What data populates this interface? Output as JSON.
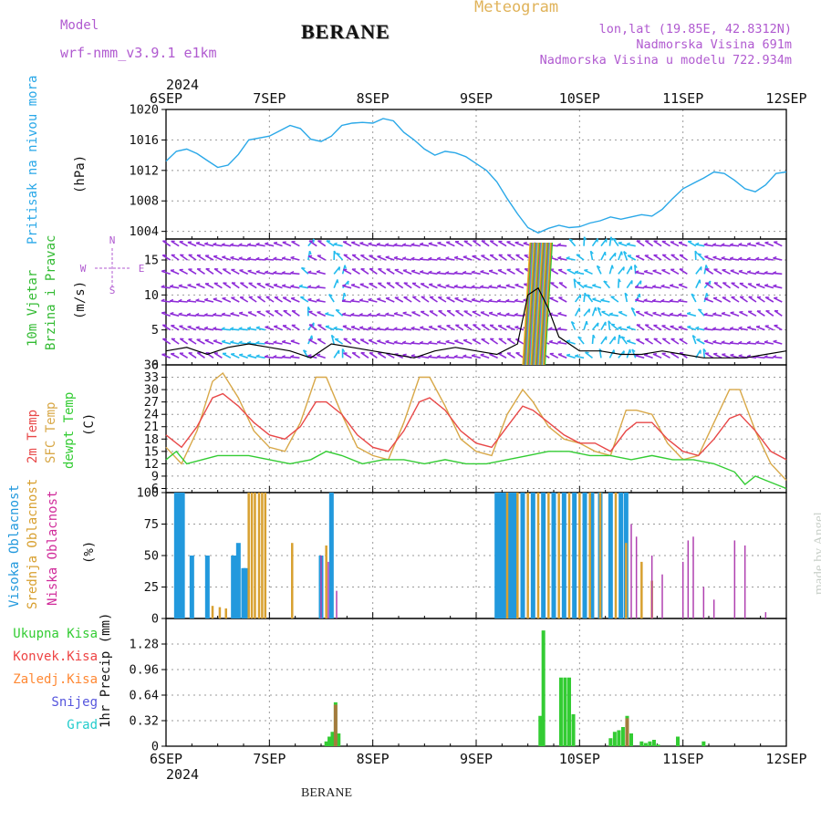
{
  "header": {
    "model_label": "Model",
    "model_name": "wrf-nmm_v3.9.1 e1km",
    "station": "BERANE",
    "product": "Meteogram",
    "coords": "lon,lat (19.85E, 42.8312N)",
    "elevation": "Nadmorska Visina 691m",
    "model_elevation": "Nadmorska Visina u modelu 722.934m"
  },
  "footer": {
    "station": "BERANE",
    "credit": "made by Angel"
  },
  "time_axis": {
    "year": "2024",
    "ticks": [
      "6SEP",
      "7SEP",
      "8SEP",
      "9SEP",
      "10SEP",
      "11SEP",
      "12SEP"
    ],
    "days": 6
  },
  "colors": {
    "pressure": "#2aa8e8",
    "temp2m": "#e84848",
    "sfc_temp": "#d8a848",
    "dewpt": "#33cc33",
    "high_cloud": "#2299dd",
    "mid_cloud": "#d8a030",
    "low_cloud": "#b040b0",
    "total_precip": "#33cc33",
    "conv_precip": "#ee4444",
    "frozen_precip": "#ff8833",
    "snow": "#5555dd",
    "hail": "#22cccc",
    "wind_purple": "#8e2cd8",
    "wind_cyan": "#22bbee"
  },
  "panels": {
    "pressure": {
      "label": "Pritisak na nivou mora",
      "unit": "(hPa)"
    },
    "wind": {
      "label1": "10m Vjetar",
      "label2": "Brzina i Pravac",
      "unit": "(m/s)",
      "compass": {
        "n": "N",
        "s": "S",
        "w": "W",
        "e": "E"
      }
    },
    "temp": {
      "label1": "2m Temp",
      "label2": "SFC Temp",
      "label3": "dewpt Temp",
      "unit": "(C)"
    },
    "cloud": {
      "label1": "Visoka Oblacnost",
      "label2": "Srednja Oblacnost",
      "label3": "Niska Oblacnost",
      "unit": "(%)"
    },
    "precip": {
      "label": "1hr Precip (mm)",
      "legend": [
        "Ukupna Kisa",
        "Konvek.Kisa",
        "Zaledj.Kisa",
        "Snijeg",
        "Grad"
      ]
    }
  },
  "chart_data": [
    {
      "type": "line",
      "ylabel": "(hPa)",
      "ylim": [
        1003,
        1020
      ],
      "yticks": [
        1004,
        1008,
        1012,
        1016,
        1020
      ],
      "grid": true,
      "series": [
        {
          "name": "Pritisak na nivou mora",
          "x": [
            0,
            0.1,
            0.2,
            0.3,
            0.4,
            0.5,
            0.6,
            0.7,
            0.8,
            1.0,
            1.1,
            1.2,
            1.3,
            1.4,
            1.5,
            1.6,
            1.7,
            1.8,
            1.9,
            2.0,
            2.1,
            2.2,
            2.3,
            2.4,
            2.5,
            2.6,
            2.7,
            2.8,
            2.9,
            3.0,
            3.1,
            3.2,
            3.3,
            3.4,
            3.5,
            3.6,
            3.7,
            3.8,
            3.9,
            4.0,
            4.1,
            4.2,
            4.3,
            4.4,
            4.5,
            4.6,
            4.7,
            4.8,
            4.9,
            5.0,
            5.1,
            5.2,
            5.3,
            5.4,
            5.5,
            5.6,
            5.7,
            5.8,
            5.9,
            6.0
          ],
          "y": [
            1013.2,
            1014.5,
            1014.8,
            1014.2,
            1013.3,
            1012.4,
            1012.7,
            1014.1,
            1016.0,
            1016.5,
            1017.2,
            1017.9,
            1017.5,
            1016.1,
            1015.8,
            1016.5,
            1017.9,
            1018.2,
            1018.3,
            1018.2,
            1018.8,
            1018.5,
            1017.0,
            1016.0,
            1014.8,
            1014.0,
            1014.5,
            1014.3,
            1013.8,
            1012.9,
            1012.0,
            1010.5,
            1008.3,
            1006.3,
            1004.5,
            1003.8,
            1004.4,
            1004.8,
            1004.5,
            1004.6,
            1005.1,
            1005.4,
            1005.9,
            1005.6,
            1005.9,
            1006.2,
            1006.0,
            1006.9,
            1008.3,
            1009.6,
            1010.3,
            1011.0,
            1011.8,
            1011.6,
            1010.7,
            1009.6,
            1009.2,
            1010.1,
            1011.6,
            1011.8
          ]
        }
      ]
    },
    {
      "type": "line",
      "ylabel": "(m/s)",
      "ylim": [
        0,
        18
      ],
      "yticks": [
        0,
        5,
        10,
        15
      ],
      "grid": true,
      "series": [
        {
          "name": "10m Vjetar",
          "x": [
            0,
            0.2,
            0.4,
            0.6,
            0.8,
            1.0,
            1.2,
            1.4,
            1.6,
            1.8,
            2.0,
            2.2,
            2.4,
            2.6,
            2.8,
            3.0,
            3.2,
            3.4,
            3.5,
            3.6,
            3.7,
            3.8,
            4.0,
            4.2,
            4.4,
            4.6,
            4.8,
            5.0,
            5.2,
            5.4,
            5.6,
            5.8,
            6.0
          ],
          "y": [
            2.0,
            2.5,
            1.5,
            2.5,
            3.0,
            2.5,
            2.0,
            1.0,
            3.0,
            2.5,
            2.0,
            1.5,
            1.0,
            2.0,
            2.5,
            2.0,
            1.5,
            3.0,
            10.0,
            11.0,
            8.0,
            4.0,
            2.0,
            2.0,
            1.5,
            1.5,
            2.0,
            1.5,
            1.0,
            1.0,
            1.0,
            1.5,
            2.0
          ]
        }
      ]
    },
    {
      "type": "line",
      "ylabel": "(C)",
      "ylim": [
        5,
        36
      ],
      "yticks": [
        6,
        9,
        12,
        15,
        18,
        21,
        24,
        27,
        30,
        33,
        36
      ],
      "grid": true,
      "series": [
        {
          "name": "2m Temp",
          "x": [
            0,
            0.15,
            0.3,
            0.45,
            0.55,
            0.7,
            0.85,
            1.0,
            1.15,
            1.3,
            1.45,
            1.55,
            1.7,
            1.85,
            2.0,
            2.15,
            2.3,
            2.45,
            2.55,
            2.7,
            2.85,
            3.0,
            3.15,
            3.3,
            3.45,
            3.55,
            3.7,
            3.85,
            4.0,
            4.15,
            4.3,
            4.45,
            4.55,
            4.7,
            4.85,
            5.0,
            5.15,
            5.3,
            5.45,
            5.55,
            5.7,
            5.85,
            6.0
          ],
          "y": [
            19,
            16,
            21,
            28,
            29,
            26,
            22,
            19,
            18,
            21,
            27,
            27,
            24,
            19,
            16,
            15,
            20,
            27,
            28,
            25,
            20,
            17,
            16,
            21,
            26,
            25,
            22,
            19,
            17,
            17,
            15,
            20,
            22,
            22,
            18,
            15,
            14,
            18,
            23,
            24,
            20,
            15,
            13
          ]
        },
        {
          "name": "SFC Temp",
          "x": [
            0,
            0.15,
            0.3,
            0.45,
            0.55,
            0.7,
            0.85,
            1.0,
            1.15,
            1.3,
            1.45,
            1.55,
            1.7,
            1.85,
            2.0,
            2.15,
            2.3,
            2.45,
            2.55,
            2.7,
            2.85,
            3.0,
            3.15,
            3.3,
            3.45,
            3.55,
            3.7,
            3.85,
            4.0,
            4.15,
            4.3,
            4.45,
            4.55,
            4.7,
            4.85,
            5.0,
            5.15,
            5.3,
            5.45,
            5.55,
            5.7,
            5.85,
            6.0
          ],
          "y": [
            16,
            12,
            20,
            32,
            34,
            28,
            20,
            16,
            15,
            22,
            33,
            33,
            24,
            16,
            14,
            13,
            22,
            33,
            33,
            26,
            18,
            15,
            14,
            24,
            30,
            27,
            21,
            18,
            17,
            15,
            14,
            25,
            25,
            24,
            17,
            13,
            14,
            22,
            30,
            30,
            20,
            12,
            8
          ]
        },
        {
          "name": "dewpt Temp",
          "x": [
            0,
            0.1,
            0.2,
            0.35,
            0.5,
            0.65,
            0.8,
            1.0,
            1.2,
            1.4,
            1.55,
            1.7,
            1.9,
            2.1,
            2.3,
            2.5,
            2.7,
            2.9,
            3.1,
            3.3,
            3.5,
            3.7,
            3.9,
            4.1,
            4.3,
            4.5,
            4.7,
            4.9,
            5.1,
            5.3,
            5.5,
            5.6,
            5.7,
            5.8,
            6.0
          ],
          "y": [
            13,
            15,
            12,
            13,
            14,
            14,
            14,
            13,
            12,
            13,
            15,
            14,
            12,
            13,
            13,
            12,
            13,
            12,
            12,
            13,
            14,
            15,
            15,
            14,
            14,
            13,
            14,
            13,
            13,
            12,
            10,
            7,
            9,
            8,
            6
          ]
        }
      ]
    },
    {
      "type": "bar",
      "ylabel": "(%)",
      "ylim": [
        0,
        100
      ],
      "yticks": [
        0,
        25,
        50,
        75,
        100
      ],
      "grid": true,
      "series": [
        {
          "name": "Visoka Oblacnost",
          "x": [
            0.1,
            0.13,
            0.16,
            0.25,
            0.4,
            0.65,
            0.68,
            0.7,
            0.75,
            0.77,
            1.5,
            1.6,
            3.2,
            3.23,
            3.26,
            3.29,
            3.32,
            3.35,
            3.38,
            3.45,
            3.55,
            3.65,
            3.75,
            3.85,
            3.95,
            4.05,
            4.12,
            4.2,
            4.3,
            4.4,
            4.45
          ],
          "y": [
            100,
            100,
            100,
            50,
            50,
            50,
            50,
            60,
            40,
            40,
            50,
            100,
            100,
            100,
            100,
            100,
            100,
            100,
            100,
            100,
            100,
            100,
            100,
            100,
            100,
            100,
            100,
            100,
            100,
            100,
            100
          ]
        },
        {
          "name": "Srednja Oblacnost",
          "x": [
            0.45,
            0.52,
            0.58,
            0.8,
            0.83,
            0.86,
            0.9,
            0.93,
            0.96,
            1.22,
            1.55,
            3.3,
            3.4,
            3.5,
            3.6,
            3.7,
            3.8,
            3.9,
            4.0,
            4.1,
            4.2,
            4.35,
            4.45,
            4.6,
            4.7
          ],
          "y": [
            10,
            9,
            8,
            100,
            100,
            100,
            100,
            100,
            100,
            60,
            58,
            100,
            100,
            100,
            100,
            100,
            100,
            100,
            100,
            100,
            100,
            100,
            60,
            45,
            30
          ]
        },
        {
          "name": "Niska Oblacnost",
          "x": [
            1.5,
            1.57,
            1.65,
            4.5,
            4.55,
            4.7,
            4.8,
            5.0,
            5.05,
            5.1,
            5.2,
            5.3,
            5.5,
            5.6,
            5.8
          ],
          "y": [
            50,
            45,
            22,
            75,
            65,
            50,
            35,
            45,
            62,
            65,
            25,
            15,
            62,
            58,
            5
          ]
        }
      ]
    },
    {
      "type": "bar",
      "ylabel": "1hr Precip (mm)",
      "ylim": [
        0,
        1.6
      ],
      "yticks": [
        0,
        0.32,
        0.64,
        0.96,
        1.28
      ],
      "grid": true,
      "series": [
        {
          "name": "Ukupna Kisa",
          "x": [
            1.55,
            1.58,
            1.61,
            1.64,
            1.67,
            3.62,
            3.65,
            3.82,
            3.86,
            3.9,
            3.94,
            4.3,
            4.34,
            4.38,
            4.42,
            4.46,
            4.5,
            4.6,
            4.64,
            4.68,
            4.72,
            4.76,
            4.95,
            5.2
          ],
          "y": [
            0.06,
            0.12,
            0.18,
            0.55,
            0.16,
            0.38,
            1.45,
            0.86,
            0.86,
            0.86,
            0.4,
            0.1,
            0.18,
            0.2,
            0.24,
            0.38,
            0.16,
            0.06,
            0.04,
            0.06,
            0.08,
            0.02,
            0.12,
            0.06
          ]
        },
        {
          "name": "Konvek.Kisa",
          "x": [
            1.64,
            4.46
          ],
          "y": [
            0.52,
            0.35
          ]
        }
      ]
    }
  ]
}
